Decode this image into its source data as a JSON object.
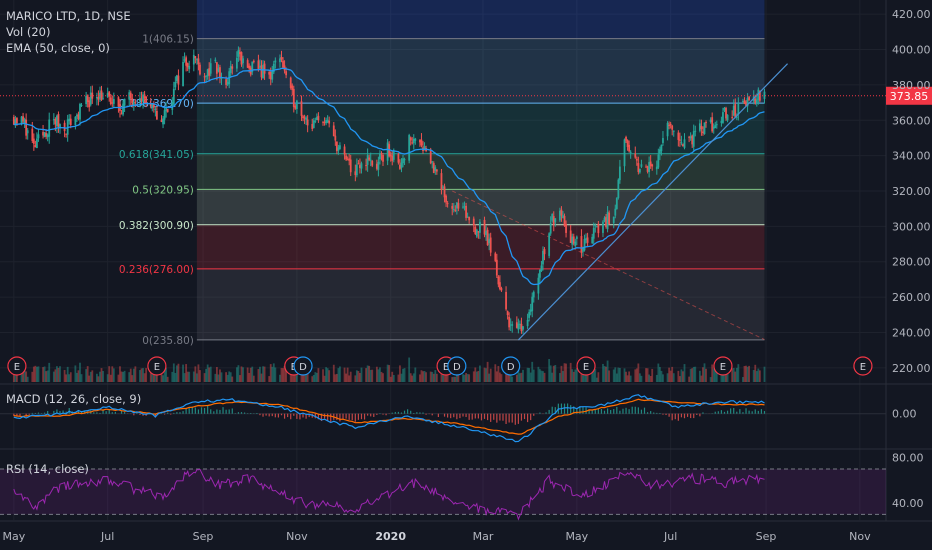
{
  "chart_data": [
    {
      "panel": "price",
      "type": "candlestick",
      "symbol": "MARICO LTD",
      "interval": "1D",
      "exchange": "NSE",
      "title_separator": ", ",
      "indicators": [
        "Vol (20)",
        "EMA (50, close, 0)"
      ],
      "y_ticks": [
        220,
        240,
        260,
        280,
        300,
        320,
        340,
        360,
        380,
        400,
        420
      ],
      "y_tick_labels": [
        "220.00",
        "240.00",
        "260.00",
        "280.00",
        "300.00",
        "320.00",
        "340.00",
        "360.00",
        "380.00",
        "400.00",
        "420.00"
      ],
      "ylim": [
        212,
        428
      ],
      "last_price": "373.85",
      "last_price_value": 373.85,
      "fib_levels": [
        {
          "ratio": "1",
          "label": "1(406.15)",
          "price": 406.15,
          "color": "#787b86"
        },
        {
          "ratio": "0.786",
          "label": "0.786(369.70)",
          "price": 369.7,
          "color": "#64b5f6"
        },
        {
          "ratio": "0.618",
          "label": "0.618(341.05)",
          "price": 341.05,
          "color": "#26a69a"
        },
        {
          "ratio": "0.5",
          "label": "0.5(320.95)",
          "price": 320.95,
          "color": "#81c784"
        },
        {
          "ratio": "0.382",
          "label": "0.382(300.90)",
          "price": 300.9,
          "color": "#c8e6c9"
        },
        {
          "ratio": "0.236",
          "label": "0.236(276.00)",
          "price": 276.0,
          "color": "#f23645"
        },
        {
          "ratio": "0",
          "label": "0(235.80)",
          "price": 235.8,
          "color": "#787b86"
        }
      ],
      "fib_start_date": "2019-08-28",
      "fib_end_date": "2020-08-31",
      "trendline": {
        "from": [
          "2020-03-24",
          235.8
        ],
        "to": [
          "2020-09-15",
          392
        ]
      },
      "daily_closes": [
        [
          "2019-05-01",
          362
        ],
        [
          "2019-05-08",
          358
        ],
        [
          "2019-05-14",
          344
        ],
        [
          "2019-05-20",
          352
        ],
        [
          "2019-05-27",
          360
        ],
        [
          "2019-06-03",
          356
        ],
        [
          "2019-06-10",
          362
        ],
        [
          "2019-06-17",
          370
        ],
        [
          "2019-06-24",
          376
        ],
        [
          "2019-07-01",
          372
        ],
        [
          "2019-07-08",
          366
        ],
        [
          "2019-07-15",
          372
        ],
        [
          "2019-07-22",
          376
        ],
        [
          "2019-07-29",
          366
        ],
        [
          "2019-08-05",
          360
        ],
        [
          "2019-08-12",
          374
        ],
        [
          "2019-08-19",
          392
        ],
        [
          "2019-08-26",
          396
        ],
        [
          "2019-09-02",
          386
        ],
        [
          "2019-09-09",
          390
        ],
        [
          "2019-09-16",
          380
        ],
        [
          "2019-09-23",
          398
        ],
        [
          "2019-09-30",
          388
        ],
        [
          "2019-10-07",
          390
        ],
        [
          "2019-10-14",
          384
        ],
        [
          "2019-10-21",
          398
        ],
        [
          "2019-10-28",
          374
        ],
        [
          "2019-11-04",
          366
        ],
        [
          "2019-11-11",
          356
        ],
        [
          "2019-11-18",
          362
        ],
        [
          "2019-11-25",
          350
        ],
        [
          "2019-12-02",
          338
        ],
        [
          "2019-12-09",
          330
        ],
        [
          "2019-12-16",
          338
        ],
        [
          "2019-12-23",
          334
        ],
        [
          "2019-12-30",
          344
        ],
        [
          "2020-01-06",
          334
        ],
        [
          "2020-01-13",
          348
        ],
        [
          "2020-01-20",
          350
        ],
        [
          "2020-01-27",
          338
        ],
        [
          "2020-02-03",
          320
        ],
        [
          "2020-02-10",
          312
        ],
        [
          "2020-02-17",
          308
        ],
        [
          "2020-02-24",
          300
        ],
        [
          "2020-03-02",
          298
        ],
        [
          "2020-03-09",
          278
        ],
        [
          "2020-03-16",
          250
        ],
        [
          "2020-03-23",
          240
        ],
        [
          "2020-03-30",
          250
        ],
        [
          "2020-04-06",
          272
        ],
        [
          "2020-04-13",
          300
        ],
        [
          "2020-04-20",
          312
        ],
        [
          "2020-04-27",
          292
        ],
        [
          "2020-05-04",
          288
        ],
        [
          "2020-05-11",
          296
        ],
        [
          "2020-05-18",
          302
        ],
        [
          "2020-05-25",
          308
        ],
        [
          "2020-06-01",
          346
        ],
        [
          "2020-06-08",
          336
        ],
        [
          "2020-06-15",
          332
        ],
        [
          "2020-06-22",
          338
        ],
        [
          "2020-06-29",
          356
        ],
        [
          "2020-07-06",
          350
        ],
        [
          "2020-07-13",
          348
        ],
        [
          "2020-07-20",
          354
        ],
        [
          "2020-07-27",
          356
        ],
        [
          "2020-08-03",
          362
        ],
        [
          "2020-08-10",
          364
        ],
        [
          "2020-08-17",
          368
        ],
        [
          "2020-08-24",
          372
        ],
        [
          "2020-08-31",
          373.85
        ]
      ],
      "earnings_markers": [
        {
          "date": "2019-05-03",
          "label": "E"
        },
        {
          "date": "2019-08-02",
          "label": "E"
        },
        {
          "date": "2019-10-30",
          "label": "E"
        },
        {
          "date": "2020-02-06",
          "label": "E"
        },
        {
          "date": "2020-05-07",
          "label": "E"
        },
        {
          "date": "2020-08-04",
          "label": "E"
        },
        {
          "date": "2020-11-03",
          "label": "E"
        }
      ],
      "dividend_markers": [
        {
          "date": "2019-11-05",
          "label": "D"
        },
        {
          "date": "2020-02-13",
          "label": "D"
        },
        {
          "date": "2020-03-19",
          "label": "D"
        }
      ]
    },
    {
      "panel": "macd",
      "type": "line",
      "title": "MACD (12, 26, close, 9)",
      "y_ticks": [
        0
      ],
      "y_tick_labels": [
        "0.00"
      ],
      "ylim": [
        -14,
        12
      ],
      "macd": [
        [
          "2019-05-01",
          -2
        ],
        [
          "2019-06-01",
          0
        ],
        [
          "2019-07-01",
          3
        ],
        [
          "2019-08-01",
          -1
        ],
        [
          "2019-08-25",
          5
        ],
        [
          "2019-09-20",
          6
        ],
        [
          "2019-10-20",
          3
        ],
        [
          "2019-11-15",
          -2
        ],
        [
          "2019-12-10",
          -6
        ],
        [
          "2020-01-10",
          -1
        ],
        [
          "2020-02-10",
          -5
        ],
        [
          "2020-03-25",
          -12
        ],
        [
          "2020-04-20",
          2
        ],
        [
          "2020-05-20",
          4
        ],
        [
          "2020-06-10",
          8
        ],
        [
          "2020-07-05",
          3
        ],
        [
          "2020-08-05",
          5
        ],
        [
          "2020-08-31",
          5
        ]
      ],
      "signal": [
        [
          "2019-05-01",
          -1
        ],
        [
          "2019-06-01",
          -1
        ],
        [
          "2019-07-01",
          2
        ],
        [
          "2019-08-01",
          0
        ],
        [
          "2019-08-25",
          3
        ],
        [
          "2019-09-20",
          5
        ],
        [
          "2019-10-20",
          4
        ],
        [
          "2019-11-15",
          0
        ],
        [
          "2019-12-10",
          -4
        ],
        [
          "2020-01-10",
          -2
        ],
        [
          "2020-02-10",
          -4
        ],
        [
          "2020-03-25",
          -9
        ],
        [
          "2020-04-20",
          -1
        ],
        [
          "2020-05-20",
          3
        ],
        [
          "2020-06-10",
          6
        ],
        [
          "2020-07-05",
          5
        ],
        [
          "2020-08-05",
          4
        ],
        [
          "2020-08-31",
          4
        ]
      ]
    },
    {
      "panel": "rsi",
      "type": "line",
      "title": "RSI (14, close)",
      "y_ticks": [
        40,
        80
      ],
      "y_tick_labels": [
        "40.00",
        "80.00"
      ],
      "ylim": [
        25,
        85
      ],
      "bands": [
        30,
        70
      ],
      "values": [
        [
          "2019-05-01",
          52
        ],
        [
          "2019-05-14",
          36
        ],
        [
          "2019-06-01",
          55
        ],
        [
          "2019-07-01",
          60
        ],
        [
          "2019-08-05",
          45
        ],
        [
          "2019-08-25",
          70
        ],
        [
          "2019-09-10",
          55
        ],
        [
          "2019-10-01",
          62
        ],
        [
          "2019-11-05",
          40
        ],
        [
          "2019-12-10",
          35
        ],
        [
          "2020-01-15",
          58
        ],
        [
          "2020-02-20",
          38
        ],
        [
          "2020-03-23",
          28
        ],
        [
          "2020-04-13",
          60
        ],
        [
          "2020-05-05",
          45
        ],
        [
          "2020-06-05",
          68
        ],
        [
          "2020-06-20",
          55
        ],
        [
          "2020-07-15",
          62
        ],
        [
          "2020-08-05",
          58
        ],
        [
          "2020-08-31",
          62
        ]
      ]
    }
  ],
  "x_axis": {
    "labels": [
      {
        "text": "May",
        "date": "2019-05-01"
      },
      {
        "text": "Jul",
        "date": "2019-07-01"
      },
      {
        "text": "Sep",
        "date": "2019-09-01"
      },
      {
        "text": "Nov",
        "date": "2019-11-01"
      },
      {
        "text": "2020",
        "date": "2020-01-01",
        "bold": true
      },
      {
        "text": "Mar",
        "date": "2020-03-01"
      },
      {
        "text": "May",
        "date": "2020-05-01"
      },
      {
        "text": "Jul",
        "date": "2020-07-01"
      },
      {
        "text": "Sep",
        "date": "2020-09-01"
      },
      {
        "text": "Nov",
        "date": "2020-11-01"
      }
    ],
    "start_date": "2019-04-22",
    "end_date": "2020-11-18"
  },
  "colors": {
    "background": "#131722",
    "grid": "#1e222d",
    "text": "#b2b5be",
    "up": "#26a69a",
    "down": "#ef5350",
    "ema": "#2196f3",
    "trendline": "#4b8fd1",
    "last_price": "#f23645",
    "macd": "#2196f3",
    "signal": "#ff6d00",
    "rsi": "#9c27b0",
    "earnings": "#f23645",
    "dividend": "#2196f3"
  }
}
